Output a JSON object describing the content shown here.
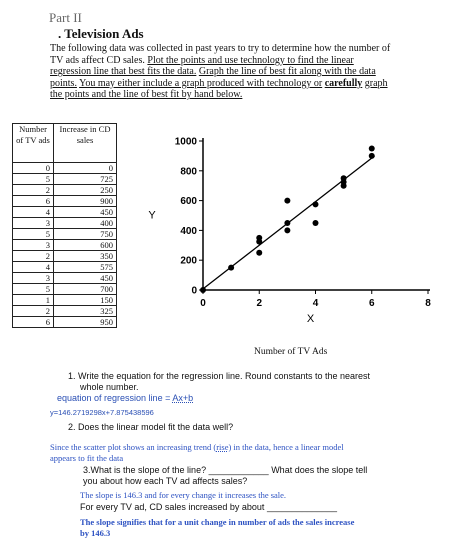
{
  "doc": {
    "part": "Part II",
    "heading": ". Television Ads",
    "intro_plain": "The following data was collected in past years to try to determine how the number of TV ads affect CD sales.",
    "intro_u1": "Plot the points and use technology to find the linear regression line that best fits the data.",
    "intro_u2": "Graph the line of best fit along with the data points.",
    "intro_u3": "You may either include a graph produced with technology or",
    "intro_bold": "carefully",
    "intro_u4": "graph the points and the line of best fit by hand below."
  },
  "table": {
    "headers": [
      "Number of TV ads",
      "Increase in CD sales"
    ],
    "rows": [
      [
        "0",
        "0"
      ],
      [
        "5",
        "725"
      ],
      [
        "2",
        "250"
      ],
      [
        "6",
        "900"
      ],
      [
        "4",
        "450"
      ],
      [
        "3",
        "400"
      ],
      [
        "5",
        "750"
      ],
      [
        "3",
        "600"
      ],
      [
        "2",
        "350"
      ],
      [
        "4",
        "575"
      ],
      [
        "3",
        "450"
      ],
      [
        "5",
        "700"
      ],
      [
        "1",
        "150"
      ],
      [
        "2",
        "325"
      ],
      [
        "6",
        "950"
      ]
    ]
  },
  "chart_data": {
    "type": "scatter",
    "title": "",
    "xlabel": "X",
    "ylabel": "Y",
    "caption": "Number of TV Ads",
    "xlim": [
      0,
      8
    ],
    "ylim": [
      0,
      1000
    ],
    "xticks": [
      "0",
      "2",
      "4",
      "6",
      "8"
    ],
    "yticks": [
      "0",
      "200",
      "400",
      "600",
      "800",
      "1000"
    ],
    "points": [
      [
        0,
        0
      ],
      [
        1,
        150
      ],
      [
        2,
        250
      ],
      [
        2,
        325
      ],
      [
        2,
        350
      ],
      [
        3,
        400
      ],
      [
        3,
        450
      ],
      [
        3,
        600
      ],
      [
        4,
        450
      ],
      [
        4,
        575
      ],
      [
        5,
        700
      ],
      [
        5,
        725
      ],
      [
        5,
        750
      ],
      [
        6,
        900
      ],
      [
        6,
        950
      ]
    ],
    "line": {
      "slope": 146.27,
      "intercept": 7.875
    },
    "grid": false
  },
  "questions": {
    "q1_num": "1.",
    "q1_text_a": "Write the equation for the regression line.  Round constants to the nearest",
    "q1_text_b": "whole number.",
    "a1_label": "equation of regression line =",
    "a1_form": "Ax+b",
    "a1_eq": "y=146.2719298x+7.875438596",
    "q2_num": "2.",
    "q2_text": "Does the linear model fit the data well?",
    "a2_line1": "Since the scatter plot shows an increasing trend (",
    "a2_rise": "rise",
    "a2_line1_end": ") in the data, hence a linear model",
    "a2_line2": "appears to fit the data",
    "q3_text_a": "3.What is the slope of the line?",
    "q3_blank1": "____________",
    "q3_text_b": "What does the slope tell",
    "q3_text_c": "you about how each TV ad affects sales?",
    "a3_line": "The slope is 146.3 and for every change it increases the sale.",
    "q4_text": "For every TV ad, CD sales increased by about",
    "q4_blank": "______________",
    "a4_line1": "The slope signifies that for a unit change in number of ads the sales increase",
    "a4_line2": "by 146.3"
  }
}
